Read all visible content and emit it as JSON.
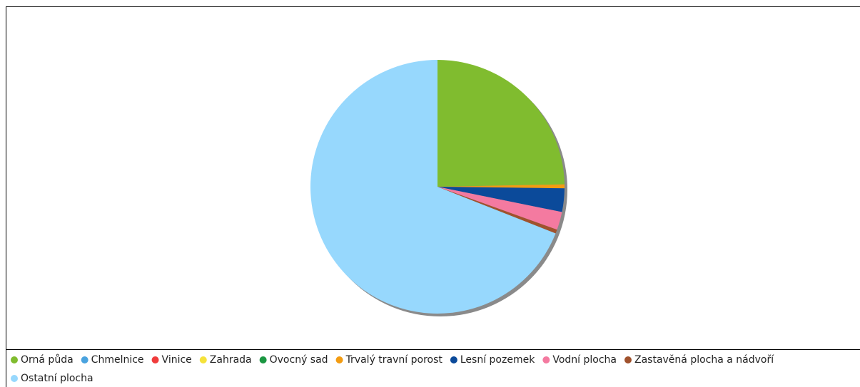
{
  "chart_data": {
    "type": "pie",
    "categories": [
      "Orná půda",
      "Chmelnice",
      "Vinice",
      "Zahrada",
      "Ovocný sad",
      "Trvalý travní porost",
      "Lesní pozemek",
      "Vodní plocha",
      "Zastavěná plocha a nádvoří",
      "Ostatní plocha"
    ],
    "values": [
      24.7,
      0,
      0,
      0,
      0,
      0.5,
      3.0,
      2.3,
      0.5,
      69.0
    ],
    "colors": [
      "#80bc2f",
      "#4aa3df",
      "#f03c3c",
      "#f5e23a",
      "#1a9641",
      "#f39c12",
      "#0b4a9a",
      "#f47aa0",
      "#a0522d",
      "#97d8fd"
    ],
    "legend": "bottom"
  }
}
